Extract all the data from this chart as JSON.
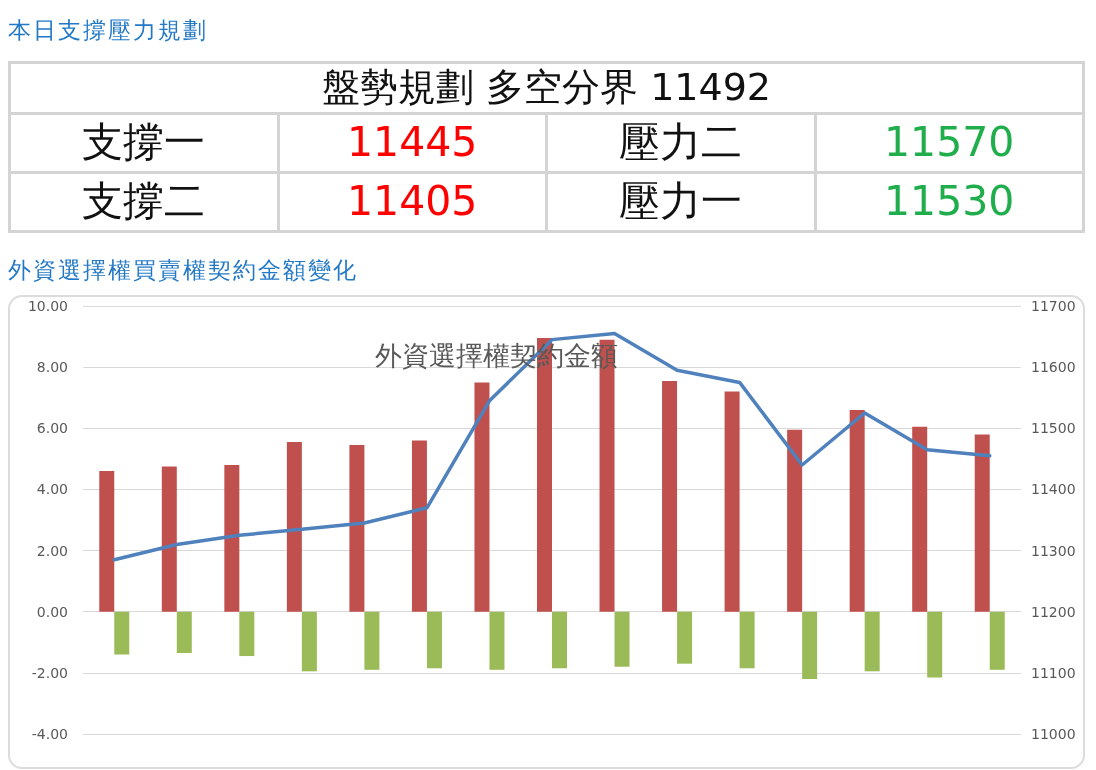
{
  "chart_data": [
    {
      "type": "other",
      "title": "本日支撐壓力規劃",
      "annotations": [
        "盤勢規劃 多空分界 11492",
        "支撐一",
        "11445",
        "壓力二",
        "11570",
        "支撐二",
        "11405",
        "壓力一",
        "11530"
      ]
    },
    {
      "type": "bar",
      "title": "外資選擇權買賣權契約金額變化",
      "subtitle": "外資選擇權契約金額",
      "categories": [
        null,
        null,
        null,
        null,
        null,
        null,
        null,
        null,
        null,
        null,
        null,
        null,
        null,
        null,
        null
      ],
      "series": [
        {
          "type": "bar",
          "color": "#c0504d",
          "values": [
            4.6,
            4.75,
            4.8,
            5.55,
            5.45,
            5.6,
            7.5,
            8.95,
            8.9,
            7.55,
            7.2,
            5.95,
            6.6,
            6.05,
            5.8
          ]
        },
        {
          "type": "bar",
          "color": "#9bbb59",
          "values": [
            -1.4,
            -1.35,
            -1.45,
            -1.95,
            -1.9,
            -1.85,
            -1.9,
            -1.85,
            -1.8,
            -1.7,
            -1.85,
            -2.2,
            -1.95,
            -2.15,
            -1.9
          ]
        },
        {
          "type": "line",
          "axis": "y2",
          "color": "#4f81bd",
          "values": [
            11285,
            11310,
            11325,
            11335,
            11345,
            11370,
            11545,
            11645,
            11655,
            11595,
            11575,
            11440,
            11525,
            11465,
            11455
          ]
        }
      ],
      "ylim": [
        -4,
        10
      ],
      "yticks": [
        {
          "value": -4,
          "label": "-4.00"
        },
        {
          "value": -2,
          "label": "-2.00"
        },
        {
          "value": 0,
          "label": "0.00"
        },
        {
          "value": 2,
          "label": "2.00"
        },
        {
          "value": 4,
          "label": "4.00"
        },
        {
          "value": 6,
          "label": "6.00"
        },
        {
          "value": 8,
          "label": "8.00"
        },
        {
          "value": 10,
          "label": "10.00"
        }
      ],
      "y2lim": [
        11000,
        11700
      ],
      "y2ticks": [
        11000,
        11100,
        11200,
        11300,
        11400,
        11500,
        11600,
        11700
      ],
      "grid": "y",
      "marker": "none",
      "tick_labels": "y"
    }
  ]
}
